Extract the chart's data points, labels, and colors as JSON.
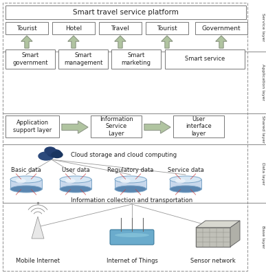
{
  "title": "Smart travel service platform",
  "bg_color": "#ffffff",
  "service_labels": [
    "Tourist",
    "Hotel",
    "Travel",
    "Tourist",
    "Government"
  ],
  "smart_labels": [
    "Smart\ngovernment",
    "Smart\nmanagement",
    "Smart\nmarketing",
    "Smart service"
  ],
  "shared_labels": [
    "Application\nsupport layer",
    "Information\nService\nLayer",
    "User\ninterface\nlayer"
  ],
  "data_labels": [
    "Basic data",
    "User data",
    "Regulatory data",
    "Service data"
  ],
  "base_labels": [
    "Mobile Internet",
    "Internet of Things",
    "Sensor network"
  ],
  "layer_labels": [
    "Service layer",
    "Application layer",
    "Shared layer",
    "Data layer",
    "Base layer"
  ],
  "cloud_text": "Cloud storage and cloud computing",
  "info_collect_text": "Information collection and transportation",
  "arrow_color": "#b0c4a0",
  "box_border": "#777777",
  "sep_color": "#888888",
  "dashed_color": "#999999",
  "text_color": "#222222"
}
